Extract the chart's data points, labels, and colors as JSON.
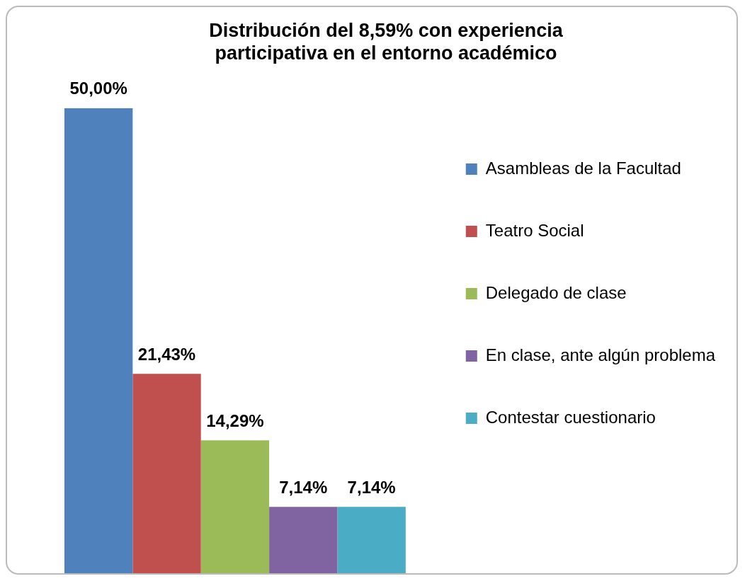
{
  "chart_data": {
    "type": "bar",
    "title": "Distribución del 8,59% con experiencia\nparticipativa en el entorno académico",
    "categories": [
      null
    ],
    "legend": "right",
    "series": [
      {
        "name": "Asambleas de la Facultad",
        "color": "#4f81bd",
        "values": [
          50
        ],
        "value_labels": [
          "50,00%"
        ]
      },
      {
        "name": "Teatro Social",
        "color": "#c0504d",
        "values": [
          21.43
        ],
        "value_labels": [
          "21,43%"
        ]
      },
      {
        "name": "Delegado de clase",
        "color": "#9bbb59",
        "values": [
          14.29
        ],
        "value_labels": [
          "14,29%"
        ]
      },
      {
        "name": "En clase, ante algún problema",
        "color": "#8064a2",
        "values": [
          7.14
        ],
        "value_labels": [
          "7,14%"
        ]
      },
      {
        "name": "Contestar cuestionario",
        "color": "#4bacc6",
        "values": [
          7.14
        ],
        "value_labels": [
          "7,14%"
        ]
      }
    ]
  }
}
